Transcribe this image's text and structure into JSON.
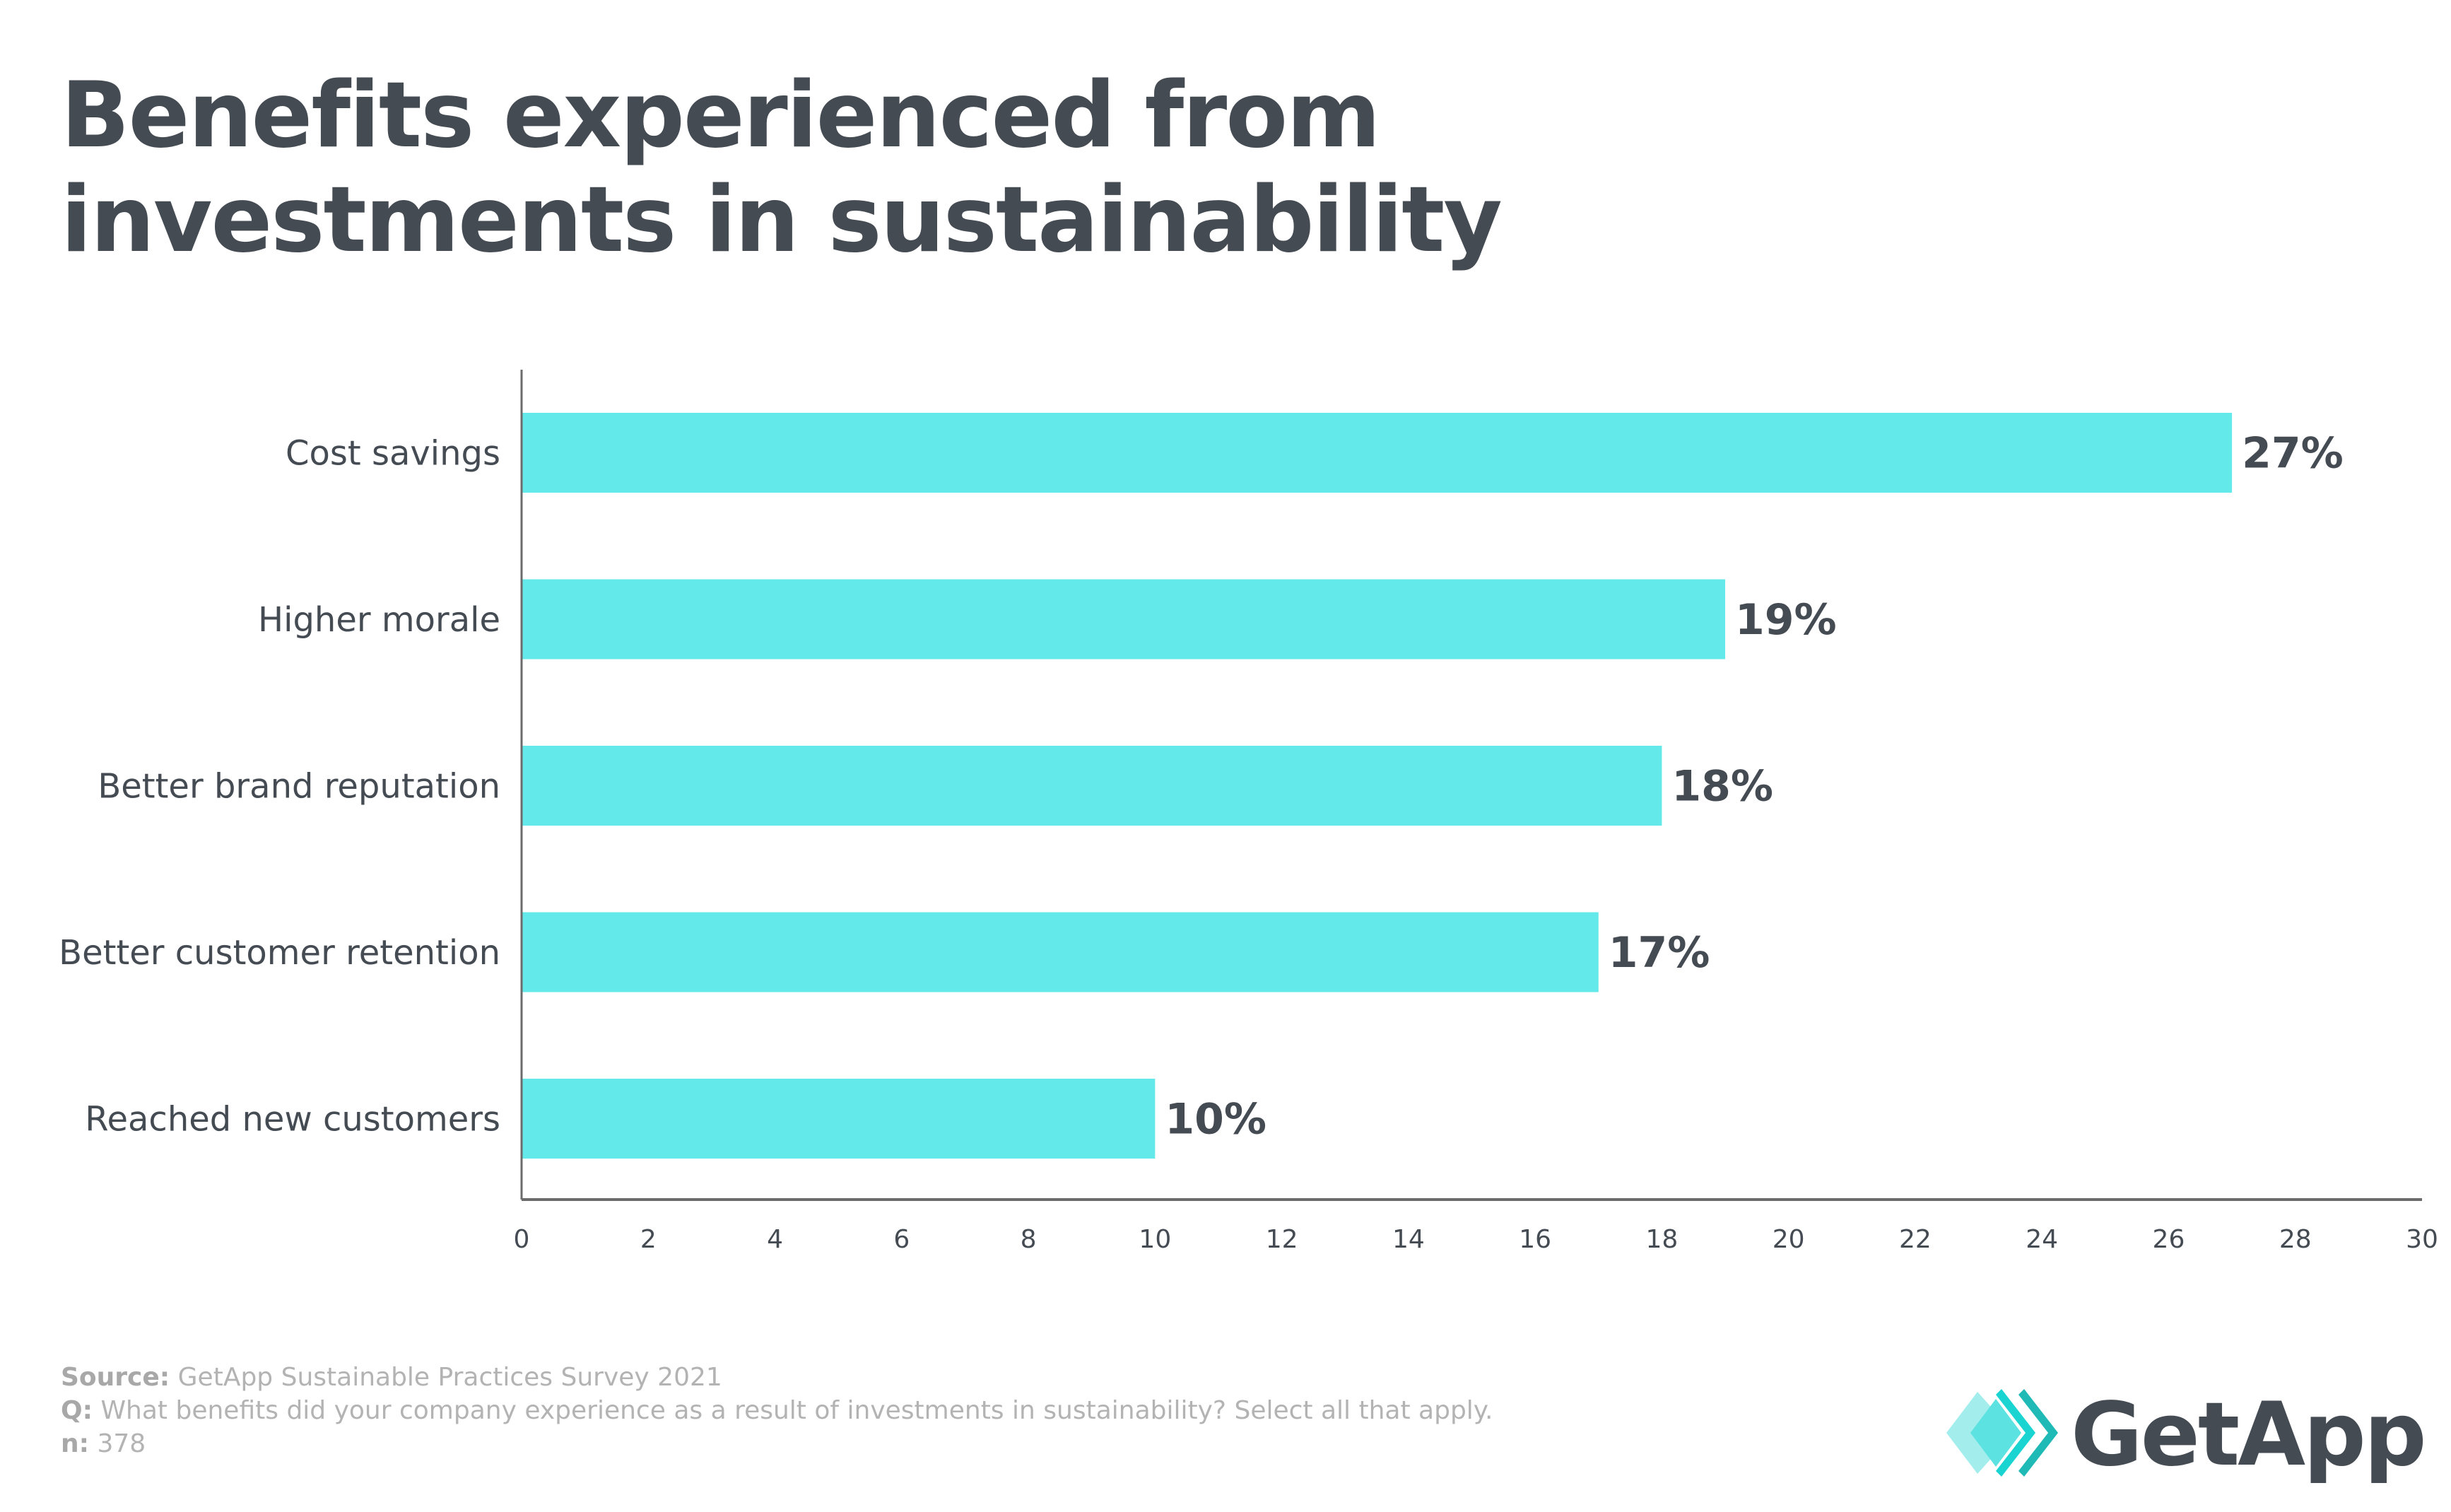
{
  "title": {
    "line1": "Benefits experienced from",
    "line2": "investments in sustainability"
  },
  "chart_data": {
    "type": "bar",
    "orientation": "horizontal",
    "title": "Benefits experienced from investments in sustainability",
    "categories": [
      "Cost savings",
      "Higher morale",
      "Better brand reputation",
      "Better customer retention",
      "Reached new customers"
    ],
    "values": [
      27,
      19,
      18,
      17,
      10
    ],
    "data_labels": [
      "27%",
      "19%",
      "18%",
      "17%",
      "10%"
    ],
    "xlabel": "",
    "ylabel": "",
    "xlim": [
      0,
      30
    ],
    "xticks": [
      "0",
      "2",
      "4",
      "6",
      "8",
      "10",
      "12",
      "14",
      "16",
      "18",
      "20",
      "22",
      "24",
      "26",
      "28",
      "30"
    ],
    "grid": false,
    "legend": "none",
    "bar_color": "#63e9e9"
  },
  "footer": {
    "source_label": "Source:",
    "source_text": "GetApp Sustainable Practices Survey 2021",
    "question_label": "Q:",
    "question_text": "What benefits did your company experience as a result of investments in sustainability? Select all that apply.",
    "n_label": "n:",
    "n_text": "378"
  },
  "logo": {
    "text": "GetApp",
    "icon": "getapp-chevrons-icon",
    "colors": [
      "#a3eeec",
      "#5ce2e0",
      "#1ad4d2",
      "#1fbab6"
    ]
  }
}
